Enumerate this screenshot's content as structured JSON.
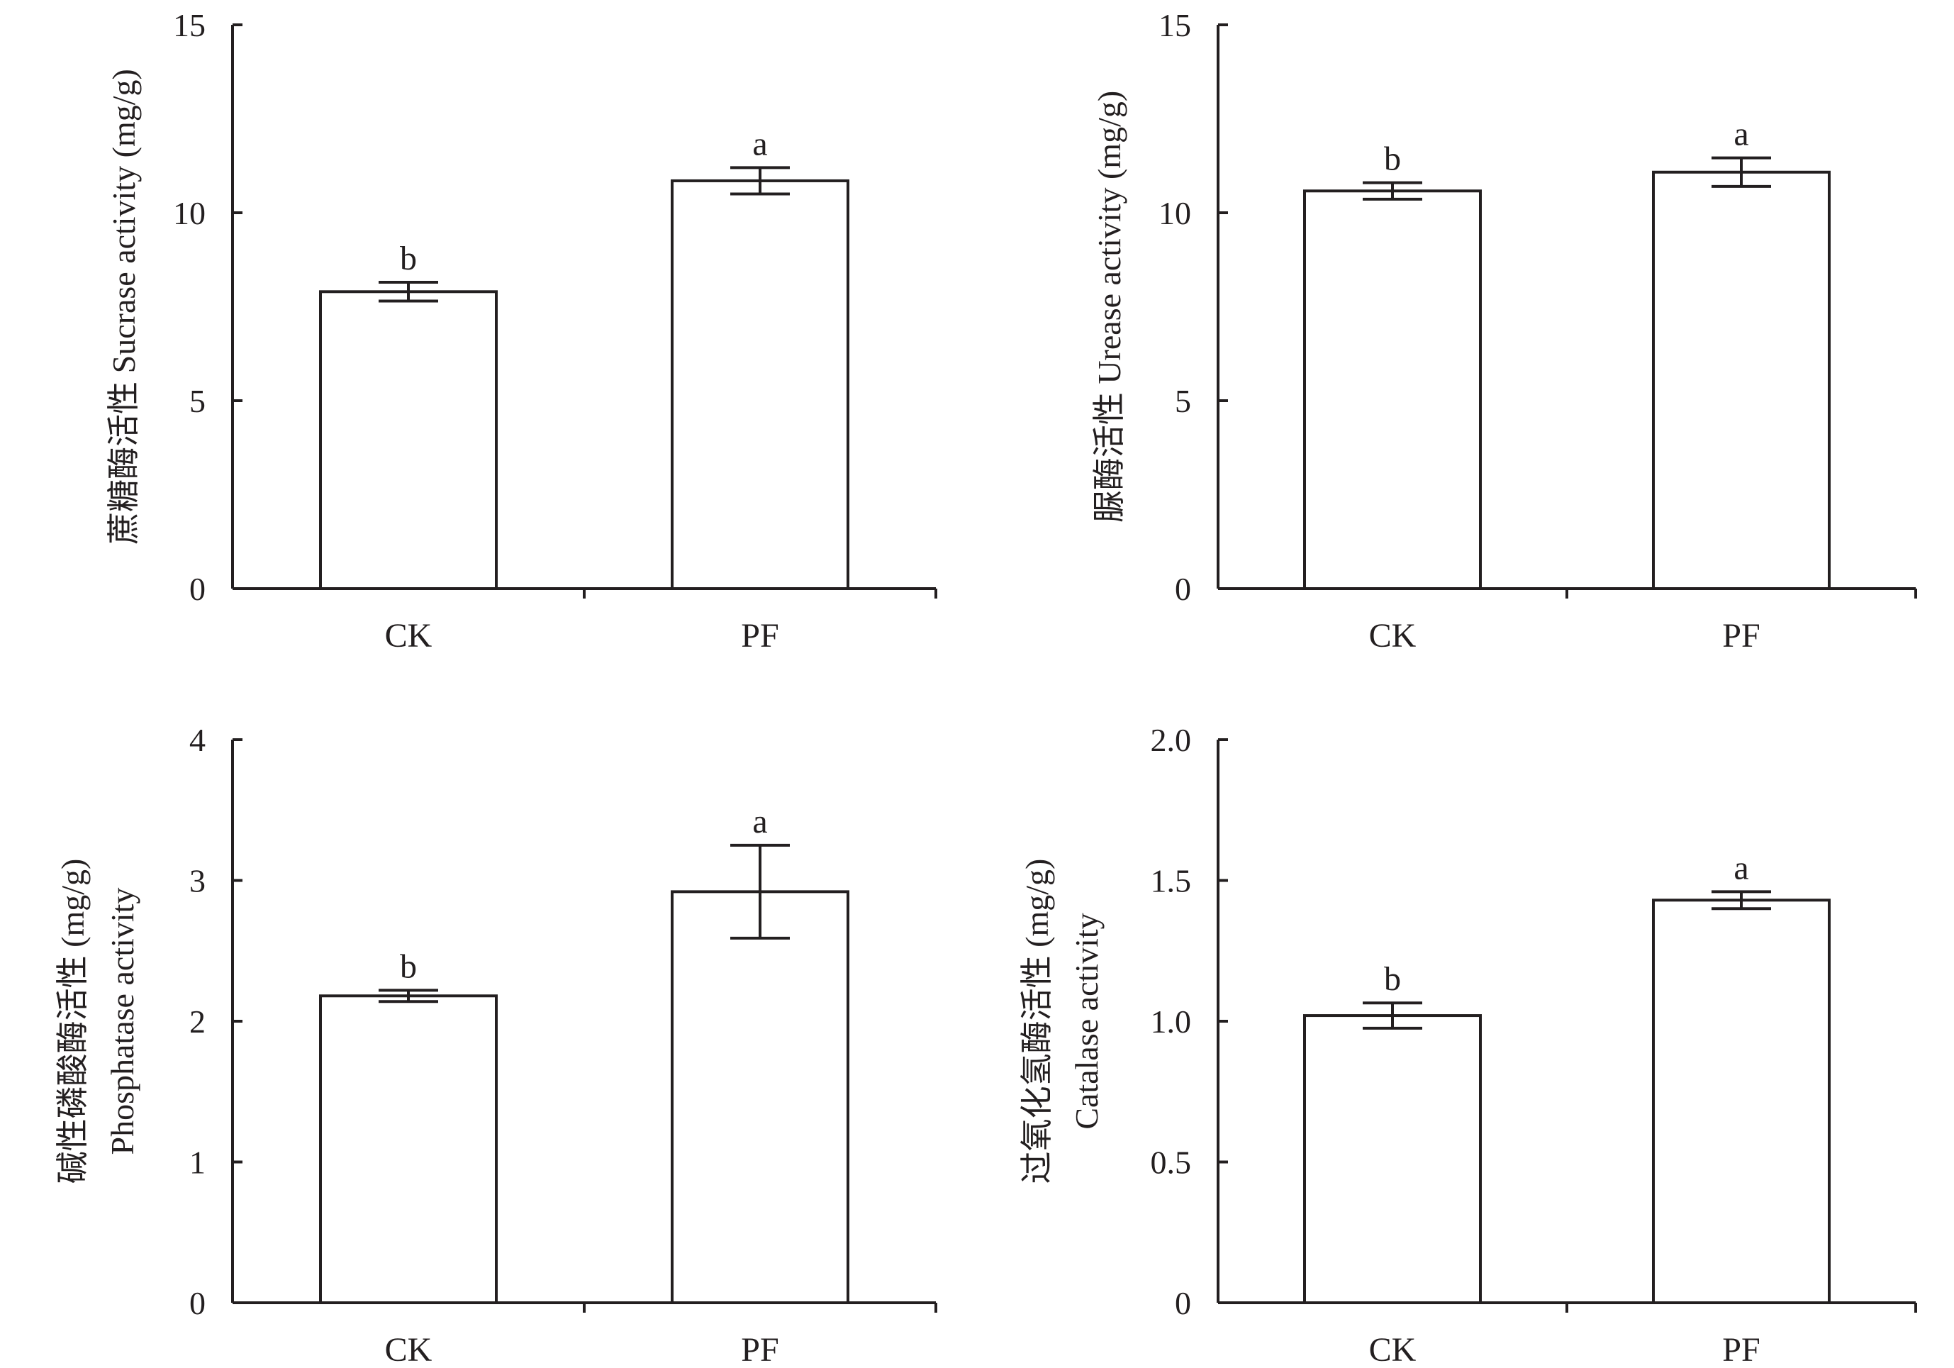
{
  "colors": {
    "ink": "#231f20",
    "bar_fill": "#ffffff",
    "background": "#ffffff"
  },
  "chart_data": [
    {
      "type": "bar",
      "title": "",
      "xlabel": "",
      "ylabel_lines": [
        "蔗糖酶活性 Sucrase activity (mg/g)"
      ],
      "ylim": [
        0,
        15
      ],
      "yticks": [
        "0",
        "5",
        "10",
        "15"
      ],
      "yticks_values": [
        0,
        5,
        10,
        15
      ],
      "categories": [
        "CK",
        "PF"
      ],
      "values": [
        7.9,
        10.85
      ],
      "errors": [
        0.25,
        0.35
      ],
      "significance": [
        "b",
        "a"
      ]
    },
    {
      "type": "bar",
      "title": "",
      "xlabel": "",
      "ylabel_lines": [
        "脲酶活性 Urease activity (mg/g)"
      ],
      "ylim": [
        0,
        15
      ],
      "yticks": [
        "0",
        "5",
        "10",
        "15"
      ],
      "yticks_values": [
        0,
        5,
        10,
        15
      ],
      "categories": [
        "CK",
        "PF"
      ],
      "values": [
        10.58,
        11.08
      ],
      "errors": [
        0.22,
        0.38
      ],
      "significance": [
        "b",
        "a"
      ]
    },
    {
      "type": "bar",
      "title": "",
      "xlabel": "",
      "ylabel_lines": [
        "碱性磷酸酶活性 (mg/g)",
        "Phosphatase activity"
      ],
      "ylim": [
        0,
        4
      ],
      "yticks": [
        "0",
        "1",
        "2",
        "3",
        "4"
      ],
      "yticks_values": [
        0,
        1,
        2,
        3,
        4
      ],
      "categories": [
        "CK",
        "PF"
      ],
      "values": [
        2.18,
        2.92
      ],
      "errors": [
        0.04,
        0.33
      ],
      "significance": [
        "b",
        "a"
      ]
    },
    {
      "type": "bar",
      "title": "",
      "xlabel": "",
      "ylabel_lines": [
        "过氧化氢酶活性 (mg/g)",
        "Catalase activity"
      ],
      "ylim": [
        0,
        2.0
      ],
      "yticks": [
        "0",
        "0.5",
        "1.0",
        "1.5",
        "2.0"
      ],
      "yticks_values": [
        0,
        0.5,
        1.0,
        1.5,
        2.0
      ],
      "categories": [
        "CK",
        "PF"
      ],
      "values": [
        1.02,
        1.43
      ],
      "errors": [
        0.045,
        0.03
      ],
      "significance": [
        "b",
        "a"
      ]
    }
  ]
}
